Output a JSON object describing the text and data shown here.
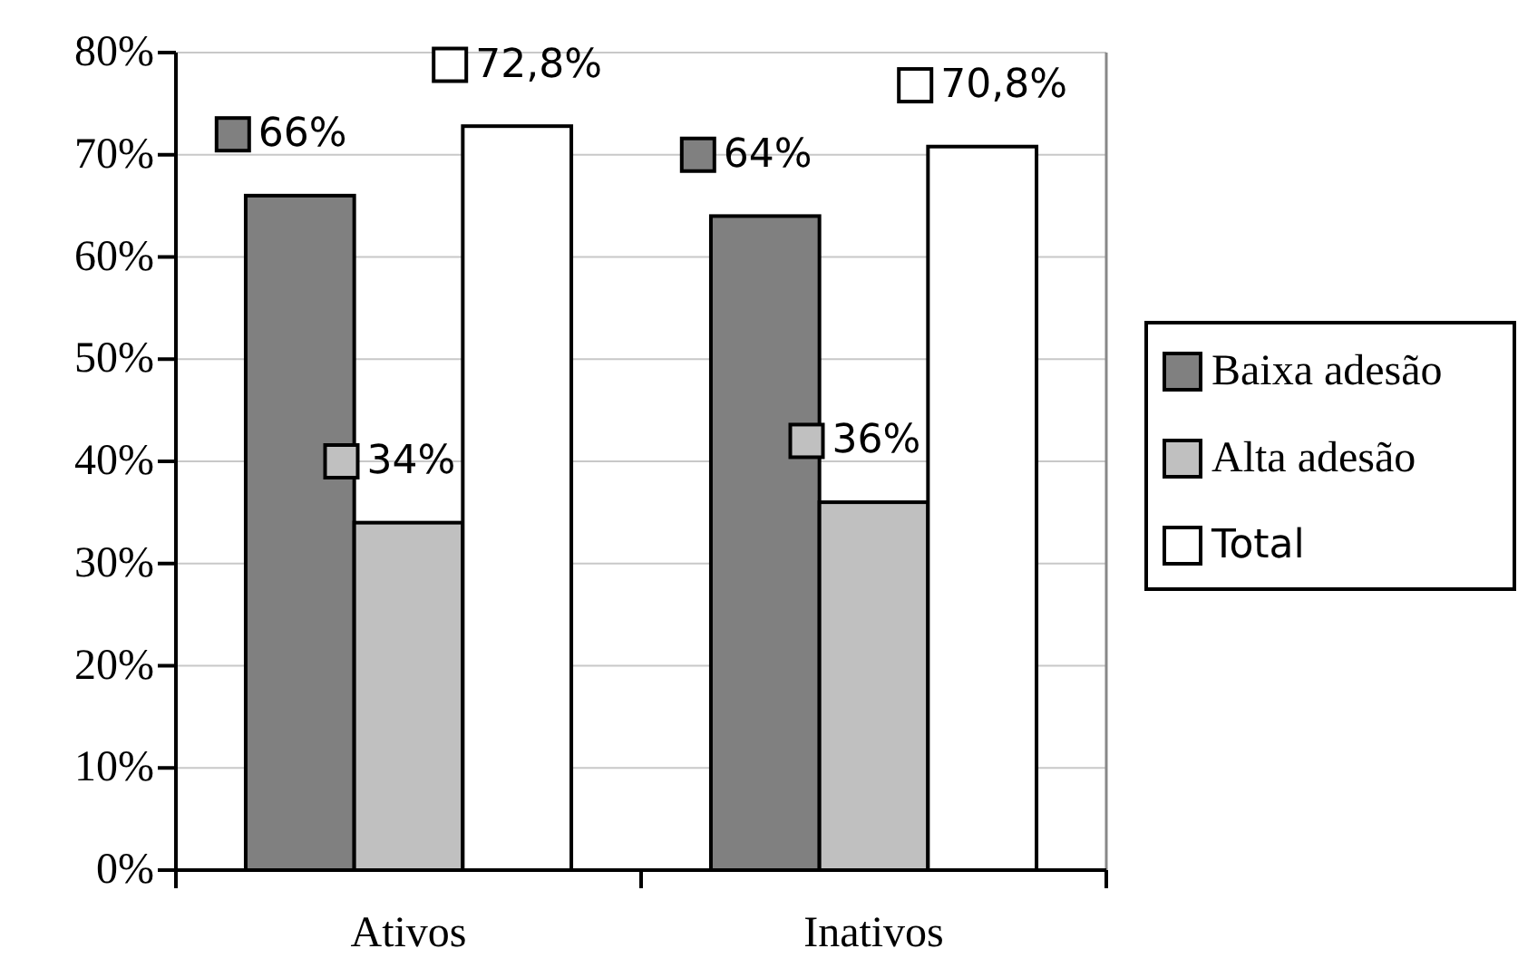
{
  "chart_data": {
    "type": "bar",
    "categories": [
      "Ativos",
      "Inativos"
    ],
    "series": [
      {
        "name": "Baixa adesão",
        "color": "#808080",
        "values": [
          66,
          64
        ],
        "value_labels": [
          "66%",
          "64%"
        ]
      },
      {
        "name": "Alta adesão",
        "color": "#c0c0c0",
        "values": [
          34,
          36
        ],
        "value_labels": [
          "34%",
          "36%"
        ]
      },
      {
        "name": "Total",
        "color": "#ffffff",
        "values": [
          72.8,
          70.8
        ],
        "value_labels": [
          "72,8%",
          "70,8%"
        ]
      }
    ],
    "ylim": [
      0,
      80
    ],
    "yticks": [
      {
        "value": 0,
        "label": "0%"
      },
      {
        "value": 10,
        "label": "10%"
      },
      {
        "value": 20,
        "label": "20%"
      },
      {
        "value": 30,
        "label": "30%"
      },
      {
        "value": 40,
        "label": "40%"
      },
      {
        "value": 50,
        "label": "50%"
      },
      {
        "value": 60,
        "label": "60%"
      },
      {
        "value": 70,
        "label": "70%"
      },
      {
        "value": 80,
        "label": "80%"
      }
    ],
    "grid": "y",
    "legend": "right"
  }
}
